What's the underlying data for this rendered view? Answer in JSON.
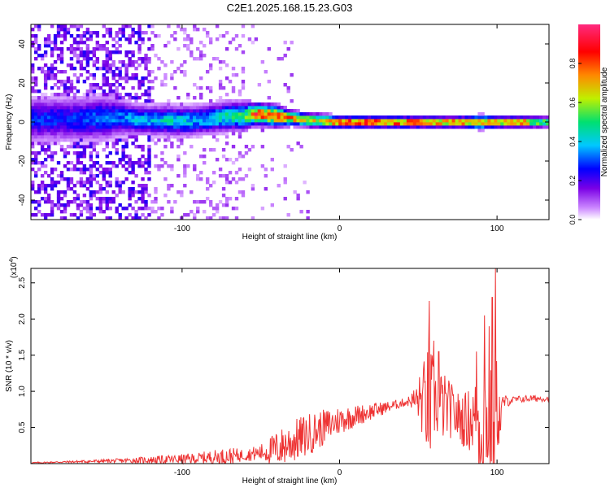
{
  "title": "C2E1.2025.168.15.23.G03",
  "colors": {
    "snr_line": "#ee3333",
    "colormap": [
      "#ffffff",
      "#cc88ff",
      "#7a00e6",
      "#0000ff",
      "#00c8ff",
      "#00e070",
      "#bff000",
      "#ff8800",
      "#ff0000",
      "#ff2a7f"
    ]
  },
  "chart_data": [
    {
      "type": "heatmap",
      "xlabel": "Height of straight line (km)",
      "ylabel": "Frequency (Hz)",
      "xlim": [
        -196,
        133
      ],
      "ylim": [
        -50,
        50
      ],
      "x_ticks": [
        -100,
        0,
        100
      ],
      "y_ticks": [
        -40,
        -20,
        0,
        20,
        40
      ],
      "x_tick_labels": [
        "-100",
        "0",
        "100"
      ],
      "y_tick_labels": [
        "-40",
        "-20",
        "0",
        "20",
        "40"
      ],
      "colorbar": {
        "label": "Normalized spectral amplitude",
        "range": [
          0,
          1
        ],
        "ticks": [
          0.0,
          0.2,
          0.4,
          0.6,
          0.8
        ],
        "tick_labels": [
          "0.0",
          "0.2",
          "0.4",
          "0.6",
          "0.8"
        ]
      },
      "ridge": {
        "x": [
          -166,
          -150,
          -140,
          -130,
          -120,
          -110,
          -100,
          -90,
          -80,
          -70,
          -60,
          -55,
          -50,
          -40,
          -30,
          -20,
          -10,
          0,
          20,
          40,
          60,
          80,
          90,
          100,
          115,
          133
        ],
        "freq": [
          1.5,
          2,
          2.5,
          1.5,
          1,
          1,
          0.5,
          1,
          2,
          3,
          3,
          4,
          4,
          3,
          2,
          1,
          0.5,
          0,
          0,
          0,
          0,
          0,
          0,
          0,
          0,
          0
        ],
        "width": [
          6,
          6,
          5,
          4,
          4,
          4,
          4,
          4,
          4,
          4,
          4,
          3,
          3,
          3,
          2,
          2,
          2,
          1.5,
          1.5,
          1.5,
          1.5,
          1.5,
          2,
          1.5,
          1.5,
          1.5
        ],
        "peak_amplitude": [
          0.3,
          0.35,
          0.35,
          0.4,
          0.4,
          0.45,
          0.45,
          0.4,
          0.45,
          0.5,
          0.55,
          0.85,
          0.9,
          0.85,
          0.8,
          0.7,
          0.7,
          0.95,
          0.95,
          0.9,
          0.85,
          0.85,
          0.75,
          0.8,
          0.85,
          0.55
        ]
      }
    },
    {
      "type": "line",
      "xlabel": "Height of straight line (km)",
      "ylabel": "SNR (10 * v/v)",
      "scale_label": "(x10",
      "scale_exponent": "4",
      "scale_suffix": ")",
      "xlim": [
        -196,
        133
      ],
      "ylim": [
        0,
        2.7
      ],
      "x_ticks": [
        -100,
        0,
        100
      ],
      "x_tick_labels": [
        "-100",
        "0",
        "100"
      ],
      "y_ticks": [
        0.5,
        1.0,
        1.5,
        2.0,
        2.5
      ],
      "y_tick_labels": [
        "0.5",
        "1.0",
        "1.5",
        "2.0",
        "2.5"
      ],
      "series": [
        {
          "x": [
            -196,
            -180,
            -160,
            -140,
            -120,
            -100,
            -90,
            -80,
            -70,
            -60,
            -50,
            -40,
            -30,
            -20,
            -10,
            0,
            10,
            20,
            30,
            40,
            45,
            50,
            55,
            57,
            60,
            65,
            70,
            75,
            80,
            85,
            88,
            90,
            93,
            95,
            97,
            99,
            100,
            102,
            104,
            110,
            120,
            133
          ],
          "base": [
            0.01,
            0.02,
            0.03,
            0.04,
            0.05,
            0.06,
            0.07,
            0.09,
            0.1,
            0.12,
            0.15,
            0.2,
            0.3,
            0.4,
            0.5,
            0.6,
            0.66,
            0.72,
            0.78,
            0.84,
            0.87,
            0.88,
            0.85,
            0.8,
            0.85,
            0.8,
            0.75,
            0.65,
            0.6,
            0.62,
            0.55,
            0.5,
            0.7,
            0.45,
            0.6,
            0.5,
            0.8,
            0.6,
            0.85,
            0.88,
            0.9,
            0.9
          ],
          "spread": [
            0.01,
            0.01,
            0.02,
            0.03,
            0.05,
            0.07,
            0.08,
            0.1,
            0.12,
            0.08,
            0.12,
            0.25,
            0.3,
            0.3,
            0.25,
            0.2,
            0.15,
            0.12,
            0.08,
            0.06,
            0.08,
            0.3,
            0.7,
            1.0,
            0.5,
            0.5,
            0.4,
            0.35,
            0.4,
            0.5,
            0.7,
            0.9,
            0.8,
            0.9,
            0.8,
            1.2,
            0.6,
            0.4,
            0.1,
            0.05,
            0.05,
            0.04
          ],
          "peaks": [
            [
              57,
              2.25
            ],
            [
              60,
              1.7
            ],
            [
              63,
              1.55
            ],
            [
              87,
              1.55
            ],
            [
              92,
              2.05
            ],
            [
              95,
              1.9
            ],
            [
              97,
              2.3
            ],
            [
              99,
              2.7
            ]
          ]
        }
      ]
    }
  ]
}
